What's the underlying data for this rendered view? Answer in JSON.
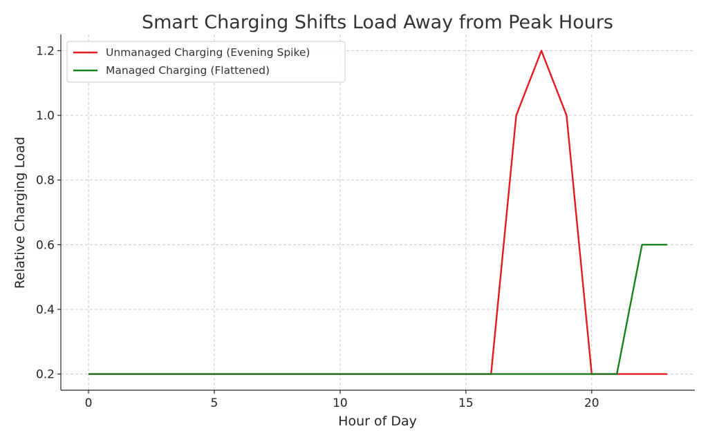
{
  "chart_data": {
    "type": "line",
    "title": "Smart Charging Shifts Load Away from Peak Hours",
    "xlabel": "Hour of Day",
    "ylabel": "Relative Charging Load",
    "x": [
      0,
      1,
      2,
      3,
      4,
      5,
      6,
      7,
      8,
      9,
      10,
      11,
      12,
      13,
      14,
      15,
      16,
      17,
      18,
      19,
      20,
      21,
      22,
      23
    ],
    "xlim": [
      -1.1,
      24.1
    ],
    "ylim": [
      0.15,
      1.25
    ],
    "xticks": [
      0,
      5,
      10,
      15,
      20
    ],
    "yticks": [
      0.2,
      0.4,
      0.6,
      0.8,
      1.0,
      1.2
    ],
    "xtick_labels": [
      "0",
      "5",
      "10",
      "15",
      "20"
    ],
    "ytick_labels": [
      "0.2",
      "0.4",
      "0.6",
      "0.8",
      "1.0",
      "1.2"
    ],
    "grid": true,
    "legend_position": "top-left",
    "series": [
      {
        "name": "Unmanaged Charging (Evening Spike)",
        "color": "#e8191c",
        "values": [
          0.2,
          0.2,
          0.2,
          0.2,
          0.2,
          0.2,
          0.2,
          0.2,
          0.2,
          0.2,
          0.2,
          0.2,
          0.2,
          0.2,
          0.2,
          0.2,
          0.2,
          1.0,
          1.2,
          1.0,
          0.2,
          0.2,
          0.2,
          0.2
        ]
      },
      {
        "name": "Managed Charging (Flattened)",
        "color": "#168019",
        "values": [
          0.2,
          0.2,
          0.2,
          0.2,
          0.2,
          0.2,
          0.2,
          0.2,
          0.2,
          0.2,
          0.2,
          0.2,
          0.2,
          0.2,
          0.2,
          0.2,
          0.2,
          0.2,
          0.2,
          0.2,
          0.2,
          0.2,
          0.6,
          0.6
        ]
      }
    ]
  }
}
